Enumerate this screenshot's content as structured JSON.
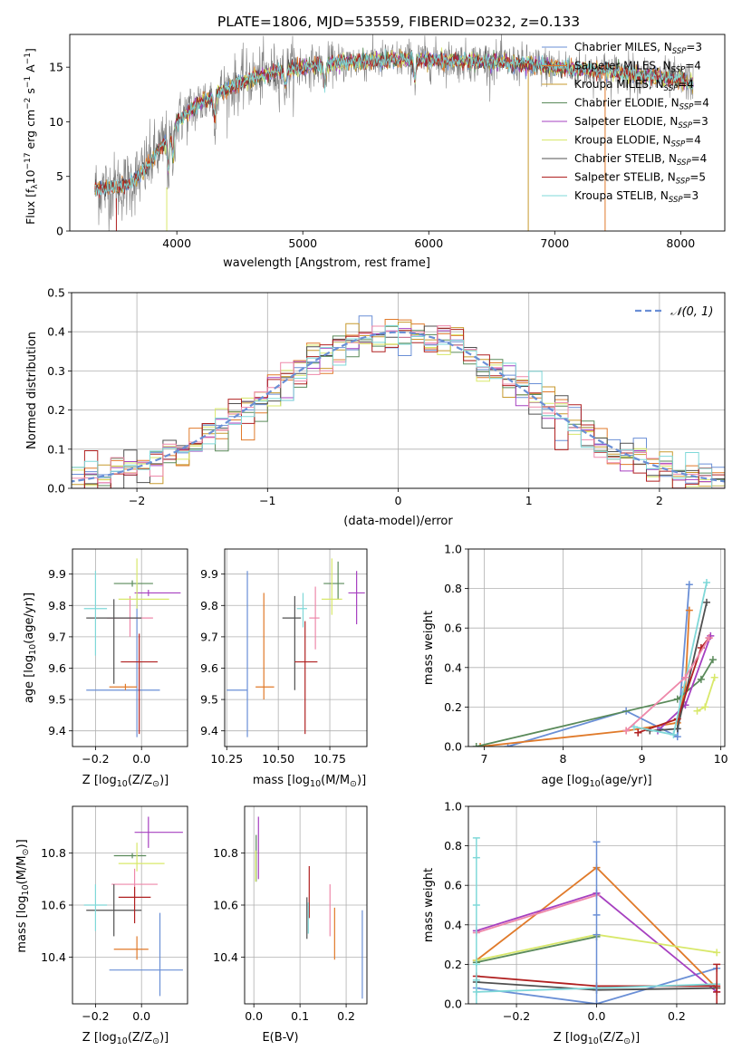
{
  "title": "PLATE=1806, MJD=53559, FIBERID=0232, z=0.133",
  "colors": {
    "chabrier_miles": "#6a8fd6",
    "salpeter_miles": "#e07a2a",
    "kroupa_miles": "#c79a2e",
    "chabrier_elodie": "#5a8a5a",
    "salpeter_elodie": "#a640c0",
    "kroupa_elodie": "#d8e86a",
    "chabrier_stelib": "#505050",
    "salpeter_stelib": "#b02020",
    "kroupa_stelib": "#7fd8d8",
    "pink": "#ee88aa",
    "data": "#808080",
    "normal": "#6a8fd6"
  },
  "legend_spectrum": [
    {
      "label": "Chabrier MILES, N",
      "sub": "SSP",
      "tail": "=3",
      "color": "#6a8fd6"
    },
    {
      "label": "Salpeter MILES, N",
      "sub": "SSP",
      "tail": "=4",
      "color": "#e07a2a"
    },
    {
      "label": "Kroupa MILES, N",
      "sub": "SSP",
      "tail": "=4",
      "color": "#c79a2e"
    },
    {
      "label": "Chabrier ELODIE, N",
      "sub": "SSP",
      "tail": "=4",
      "color": "#5a8a5a"
    },
    {
      "label": "Salpeter ELODIE, N",
      "sub": "SSP",
      "tail": "=3",
      "color": "#a640c0"
    },
    {
      "label": "Kroupa ELODIE, N",
      "sub": "SSP",
      "tail": "=4",
      "color": "#d8e86a"
    },
    {
      "label": "Chabrier STELIB, N",
      "sub": "SSP",
      "tail": "=4",
      "color": "#505050"
    },
    {
      "label": "Salpeter STELIB, N",
      "sub": "SSP",
      "tail": "=5",
      "color": "#b02020"
    },
    {
      "label": "Kroupa STELIB, N",
      "sub": "SSP",
      "tail": "=3",
      "color": "#7fd8d8"
    }
  ],
  "chart_data": [
    {
      "type": "line",
      "panel": "spectrum",
      "xlabel": "wavelength [Angstrom, rest frame]",
      "ylabel": "Flux [f_λ 10^-17 erg cm^-2 s^-1 A^-1]",
      "xlim": [
        3150,
        8350
      ],
      "ylim": [
        0,
        18
      ],
      "xticks": [
        4000,
        5000,
        6000,
        7000,
        8000
      ],
      "yticks": [
        0,
        5,
        10,
        15
      ],
      "grid": false,
      "legend_position": "right",
      "continuum": {
        "x": [
          3350,
          3500,
          3600,
          3700,
          3800,
          3900,
          4000,
          4100,
          4200,
          4300,
          4400,
          4500,
          4600,
          4700,
          4800,
          4900,
          5000,
          5200,
          5400,
          5600,
          5800,
          6000,
          6200,
          6400,
          6600,
          6800,
          7000,
          7200,
          7400,
          7600,
          7800,
          8000,
          8100
        ],
        "y": [
          3.8,
          4.0,
          4.2,
          5.0,
          6.5,
          8.0,
          10.0,
          11.0,
          11.8,
          12.5,
          13.0,
          13.6,
          14.0,
          14.3,
          14.6,
          14.8,
          15.0,
          15.3,
          15.5,
          15.6,
          15.7,
          15.7,
          15.6,
          15.5,
          15.4,
          15.2,
          15.0,
          14.8,
          14.6,
          14.4,
          14.1,
          13.8,
          13.6
        ]
      },
      "absorption_lines": [
        {
          "x": 3934,
          "depth": 3.0
        },
        {
          "x": 3969,
          "depth": 2.5
        },
        {
          "x": 4300,
          "depth": 2.0
        },
        {
          "x": 4861,
          "depth": 1.5
        },
        {
          "x": 5175,
          "depth": 2.0
        },
        {
          "x": 5890,
          "depth": 1.8
        }
      ],
      "series": [
        {
          "name": "Chabrier MILES, NSSP=3"
        },
        {
          "name": "Salpeter MILES, NSSP=4"
        },
        {
          "name": "Kroupa MILES, NSSP=4"
        },
        {
          "name": "Chabrier ELODIE, NSSP=4"
        },
        {
          "name": "Salpeter ELODIE, NSSP=3"
        },
        {
          "name": "Kroupa ELODIE, NSSP=4"
        },
        {
          "name": "Chabrier STELIB, NSSP=4"
        },
        {
          "name": "Salpeter STELIB, NSSP=5"
        },
        {
          "name": "Kroupa STELIB, NSSP=3"
        }
      ]
    },
    {
      "type": "line",
      "panel": "residual_histogram",
      "xlabel": "(data-model)/error",
      "ylabel": "Normed distribution",
      "xlim": [
        -2.5,
        2.5
      ],
      "ylim": [
        0,
        0.5
      ],
      "xticks": [
        -2,
        -1,
        0,
        1,
        2
      ],
      "yticks": [
        0.0,
        0.1,
        0.2,
        0.3,
        0.4,
        0.5
      ],
      "grid": true,
      "bin_width": 0.1,
      "legend": [
        {
          "label": "𝒩(0, 1)",
          "style": "dashed"
        }
      ],
      "legend_position": "top-right"
    },
    {
      "type": "scatter",
      "panel": "age_vs_Z",
      "xlabel": "Z [log10(Z/Z⊙)]",
      "ylabel": "age [log10(age/yr)]",
      "xlim": [
        -0.3,
        0.2
      ],
      "ylim": [
        9.35,
        9.98
      ],
      "xticks": [
        -0.2,
        0.0
      ],
      "yticks": [
        9.4,
        9.5,
        9.6,
        9.7,
        9.8,
        9.9
      ],
      "grid": true,
      "points": [
        {
          "x": -0.02,
          "xerr": [
            0.22,
            0.1
          ],
          "y": 9.53,
          "yerr": [
            0.15,
            0.34
          ],
          "color": "chabrier_miles"
        },
        {
          "x": -0.07,
          "xerr": [
            0.07,
            0.05
          ],
          "y": 9.54,
          "yerr": [
            0.01,
            0.01
          ],
          "color": "salpeter_miles"
        },
        {
          "x": -0.05,
          "xerr": [
            0.1,
            0.1
          ],
          "y": 9.76,
          "yerr": [
            0.06,
            0.07
          ],
          "color": "pink"
        },
        {
          "x": -0.04,
          "xerr": [
            0.08,
            0.09
          ],
          "y": 9.87,
          "yerr": [
            0.01,
            0.01
          ],
          "color": "chabrier_elodie"
        },
        {
          "x": 0.03,
          "xerr": [
            0.06,
            0.14
          ],
          "y": 9.84,
          "yerr": [
            0.01,
            0.01
          ],
          "color": "salpeter_elodie"
        },
        {
          "x": -0.02,
          "xerr": [
            0.08,
            0.14
          ],
          "y": 9.82,
          "yerr": [
            0.03,
            0.13
          ],
          "color": "kroupa_elodie"
        },
        {
          "x": -0.12,
          "xerr": [
            0.12,
            0.12
          ],
          "y": 9.76,
          "yerr": [
            0.21,
            0.06
          ],
          "color": "chabrier_stelib"
        },
        {
          "x": -0.01,
          "xerr": [
            0.08,
            0.08
          ],
          "y": 9.62,
          "yerr": [
            0.23,
            0.09
          ],
          "color": "salpeter_stelib"
        },
        {
          "x": -0.2,
          "xerr": [
            0.05,
            0.05
          ],
          "y": 9.79,
          "yerr": [
            0.15,
            0.12
          ],
          "color": "kroupa_stelib"
        }
      ]
    },
    {
      "type": "scatter",
      "panel": "age_vs_mass",
      "xlabel": "mass [log10(M/M⊙)]",
      "ylabel": "",
      "xlim": [
        10.24,
        10.93
      ],
      "ylim": [
        9.35,
        9.98
      ],
      "xticks": [
        10.25,
        10.5,
        10.75
      ],
      "xtick_labels": [
        "10.25",
        "10.50",
        "10.75"
      ],
      "yticks": [
        9.4,
        9.5,
        9.6,
        9.7,
        9.8,
        9.9
      ],
      "grid": true,
      "points": [
        {
          "x": 10.35,
          "xerr": [
            0.1,
            0.0
          ],
          "y": 9.53,
          "yerr": [
            0.15,
            0.38
          ],
          "color": "chabrier_miles"
        },
        {
          "x": 10.43,
          "xerr": [
            0.04,
            0.05
          ],
          "y": 9.54,
          "yerr": [
            0.04,
            0.3
          ],
          "color": "salpeter_miles"
        },
        {
          "x": 10.68,
          "xerr": [
            0.03,
            0.02
          ],
          "y": 9.76,
          "yerr": [
            0.1,
            0.1
          ],
          "color": "pink"
        },
        {
          "x": 10.79,
          "xerr": [
            0.07,
            0.03
          ],
          "y": 9.87,
          "yerr": [
            0.05,
            0.07
          ],
          "color": "chabrier_elodie"
        },
        {
          "x": 10.88,
          "xerr": [
            0.04,
            0.04
          ],
          "y": 9.84,
          "yerr": [
            0.1,
            0.07
          ],
          "color": "salpeter_elodie"
        },
        {
          "x": 10.76,
          "xerr": [
            0.05,
            0.05
          ],
          "y": 9.82,
          "yerr": [
            0.05,
            0.13
          ],
          "color": "kroupa_elodie"
        },
        {
          "x": 10.58,
          "xerr": [
            0.06,
            0.03
          ],
          "y": 9.76,
          "yerr": [
            0.23,
            0.07
          ],
          "color": "chabrier_stelib"
        },
        {
          "x": 10.63,
          "xerr": [
            0.05,
            0.06
          ],
          "y": 9.62,
          "yerr": [
            0.23,
            0.13
          ],
          "color": "salpeter_stelib"
        },
        {
          "x": 10.62,
          "xerr": [
            0.03,
            0.02
          ],
          "y": 9.79,
          "yerr": [
            0.06,
            0.05
          ],
          "color": "kroupa_stelib"
        }
      ]
    },
    {
      "type": "line",
      "panel": "mass_weight_vs_age",
      "xlabel": "age [log10(age/yr)]",
      "ylabel": "mass weight",
      "xlim": [
        6.8,
        10.05
      ],
      "ylim": [
        0,
        1
      ],
      "xticks": [
        7,
        8,
        9,
        10
      ],
      "yticks": [
        0.0,
        0.2,
        0.4,
        0.6,
        0.8,
        1.0
      ],
      "grid": true,
      "series": [
        {
          "color": "chabrier_miles",
          "x": [
            7.3,
            8.8,
            9.45,
            9.6
          ],
          "y": [
            0.0,
            0.18,
            0.05,
            0.82
          ]
        },
        {
          "color": "salpeter_miles",
          "x": [
            6.95,
            8.8,
            9.45,
            9.55,
            9.6
          ],
          "y": [
            0.0,
            0.08,
            0.12,
            0.3,
            0.69
          ]
        },
        {
          "color": "chabrier_elodie",
          "x": [
            6.9,
            9.45,
            9.75,
            9.9
          ],
          "y": [
            0.0,
            0.24,
            0.34,
            0.44
          ]
        },
        {
          "color": "salpeter_elodie",
          "x": [
            9.2,
            9.55,
            9.87
          ],
          "y": [
            0.08,
            0.21,
            0.56
          ]
        },
        {
          "color": "kroupa_elodie",
          "x": [
            9.7,
            9.8,
            9.92
          ],
          "y": [
            0.18,
            0.2,
            0.35
          ]
        },
        {
          "color": "chabrier_stelib",
          "x": [
            9.1,
            9.45,
            9.82
          ],
          "y": [
            0.08,
            0.09,
            0.73
          ]
        },
        {
          "color": "salpeter_stelib",
          "x": [
            8.95,
            9.45,
            9.75,
            9.85
          ],
          "y": [
            0.07,
            0.14,
            0.5,
            0.55
          ]
        },
        {
          "color": "kroupa_stelib",
          "x": [
            8.9,
            9.4,
            9.82
          ],
          "y": [
            0.1,
            0.06,
            0.83
          ]
        },
        {
          "color": "pink",
          "x": [
            8.8,
            9.55,
            9.85
          ],
          "y": [
            0.08,
            0.35,
            0.55
          ]
        }
      ]
    },
    {
      "type": "scatter",
      "panel": "mass_vs_Z",
      "xlabel": "Z [log10(Z/Z⊙)]",
      "ylabel": "mass [log10(M/M⊙)]",
      "xlim": [
        -0.3,
        0.2
      ],
      "ylim": [
        10.22,
        10.98
      ],
      "xticks": [
        -0.2,
        0.0
      ],
      "yticks": [
        10.4,
        10.6,
        10.8
      ],
      "grid": true,
      "points": [
        {
          "x": 0.08,
          "xerr": [
            0.22,
            0.1
          ],
          "y": 10.35,
          "yerr": [
            0.1,
            0.22
          ],
          "color": "chabrier_miles"
        },
        {
          "x": -0.02,
          "xerr": [
            0.1,
            0.05
          ],
          "y": 10.43,
          "yerr": [
            0.04,
            0.05
          ],
          "color": "salpeter_miles"
        },
        {
          "x": -0.03,
          "xerr": [
            0.1,
            0.1
          ],
          "y": 10.68,
          "yerr": [
            0.06,
            0.06
          ],
          "color": "pink"
        },
        {
          "x": -0.04,
          "xerr": [
            0.08,
            0.06
          ],
          "y": 10.79,
          "yerr": [
            0.01,
            0.01
          ],
          "color": "chabrier_elodie"
        },
        {
          "x": 0.03,
          "xerr": [
            0.06,
            0.15
          ],
          "y": 10.88,
          "yerr": [
            0.06,
            0.06
          ],
          "color": "salpeter_elodie"
        },
        {
          "x": -0.02,
          "xerr": [
            0.08,
            0.12
          ],
          "y": 10.76,
          "yerr": [
            0.03,
            0.08
          ],
          "color": "kroupa_elodie"
        },
        {
          "x": -0.12,
          "xerr": [
            0.12,
            0.12
          ],
          "y": 10.58,
          "yerr": [
            0.1,
            0.1
          ],
          "color": "chabrier_stelib"
        },
        {
          "x": -0.03,
          "xerr": [
            0.07,
            0.07
          ],
          "y": 10.63,
          "yerr": [
            0.1,
            0.04
          ],
          "color": "salpeter_stelib"
        },
        {
          "x": -0.2,
          "xerr": [
            0.05,
            0.05
          ],
          "y": 10.6,
          "yerr": [
            0.1,
            0.08
          ],
          "color": "kroupa_stelib"
        }
      ]
    },
    {
      "type": "scatter",
      "panel": "mass_vs_ebv",
      "xlabel": "E(B-V)",
      "ylabel": "",
      "xlim": [
        -0.02,
        0.245
      ],
      "ylim": [
        10.22,
        10.98
      ],
      "xticks": [
        0.0,
        0.1,
        0.2
      ],
      "yticks": [
        10.4,
        10.6,
        10.8
      ],
      "grid": true,
      "points": [
        {
          "x": 0.235,
          "y": 10.41,
          "yerr": [
            0.17,
            0.17
          ],
          "color": "chabrier_miles"
        },
        {
          "x": 0.175,
          "y": 10.49,
          "yerr": [
            0.1,
            0.1
          ],
          "color": "salpeter_miles"
        },
        {
          "x": 0.165,
          "y": 10.58,
          "yerr": [
            0.1,
            0.1
          ],
          "color": "pink"
        },
        {
          "x": 0.005,
          "y": 10.79,
          "yerr": [
            0.1,
            0.08
          ],
          "color": "chabrier_elodie"
        },
        {
          "x": 0.01,
          "y": 10.82,
          "yerr": [
            0.12,
            0.12
          ],
          "color": "salpeter_elodie"
        },
        {
          "x": 0.004,
          "y": 10.75,
          "yerr": [
            0.06,
            0.06
          ],
          "color": "kroupa_elodie"
        },
        {
          "x": 0.115,
          "y": 10.55,
          "yerr": [
            0.08,
            0.08
          ],
          "color": "chabrier_stelib"
        },
        {
          "x": 0.12,
          "y": 10.65,
          "yerr": [
            0.1,
            0.1
          ],
          "color": "salpeter_stelib"
        },
        {
          "x": 0.118,
          "y": 10.55,
          "yerr": [
            0.06,
            0.06
          ],
          "color": "kroupa_stelib"
        }
      ]
    },
    {
      "type": "line",
      "panel": "mass_weight_vs_Z",
      "xlabel": "Z [log10(Z/Z⊙)]",
      "ylabel": "mass weight",
      "xlim": [
        -0.32,
        0.32
      ],
      "ylim": [
        0,
        1
      ],
      "xticks": [
        -0.2,
        0.0,
        0.2
      ],
      "yticks": [
        0.0,
        0.2,
        0.4,
        0.6,
        0.8,
        1.0
      ],
      "grid": true,
      "series": [
        {
          "color": "chabrier_miles",
          "x": [
            -0.3,
            0.0,
            0.3
          ],
          "y": [
            0.08,
            0.0,
            0.18
          ]
        },
        {
          "color": "salpeter_miles",
          "x": [
            -0.3,
            0.0,
            0.3
          ],
          "y": [
            0.22,
            0.69,
            0.08
          ]
        },
        {
          "color": "chabrier_elodie",
          "x": [
            -0.3,
            0.0
          ],
          "y": [
            0.21,
            0.34
          ]
        },
        {
          "color": "salpeter_elodie",
          "x": [
            -0.3,
            0.0,
            0.3
          ],
          "y": [
            0.37,
            0.56,
            0.06
          ]
        },
        {
          "color": "kroupa_elodie",
          "x": [
            -0.3,
            0.0,
            0.3
          ],
          "y": [
            0.22,
            0.35,
            0.26
          ]
        },
        {
          "color": "chabrier_stelib",
          "x": [
            -0.3,
            0.0,
            0.3
          ],
          "y": [
            0.11,
            0.07,
            0.08
          ]
        },
        {
          "color": "salpeter_stelib",
          "x": [
            -0.3,
            0.0,
            0.3
          ],
          "y": [
            0.14,
            0.09,
            0.09
          ]
        },
        {
          "color": "kroupa_stelib",
          "x": [
            -0.3,
            0.0,
            0.3
          ],
          "y": [
            0.06,
            0.08,
            0.1
          ]
        },
        {
          "color": "pink",
          "x": [
            -0.3,
            0.0
          ],
          "y": [
            0.36,
            0.55
          ]
        }
      ],
      "vertical_markers": [
        {
          "x": -0.3,
          "y": [
            0.84,
            0.74,
            0.5,
            0.2,
            0.12
          ]
        },
        {
          "x": 0.0,
          "y": [
            0.82,
            0.45,
            0.35
          ]
        },
        {
          "x": 0.3,
          "y": [
            0.2,
            0.06
          ]
        }
      ]
    }
  ]
}
